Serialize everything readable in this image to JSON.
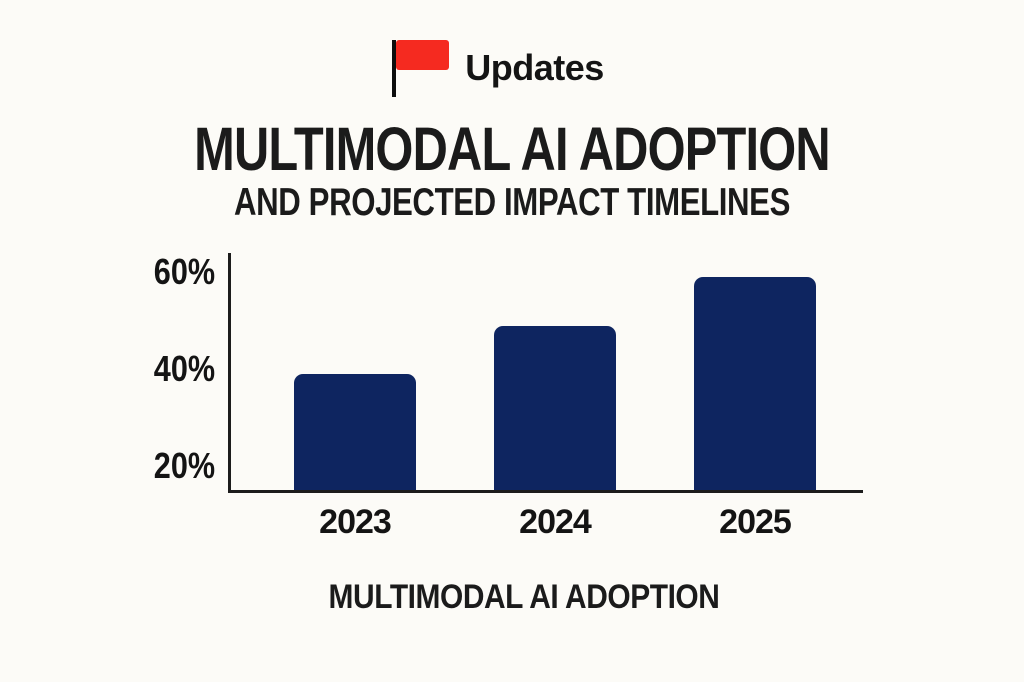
{
  "badge": {
    "label": "Updates",
    "flag_icon": "red-flag-icon"
  },
  "header": {
    "title": "MULTIMODAL AI ADOPTION",
    "subtitle": "AND PROJECTED IMPACT TIMELINES"
  },
  "colors": {
    "flag_red": "#f52a20",
    "bar_navy": "#0e2560",
    "axis_black": "#1c1c1c",
    "background": "#fcfbf7"
  },
  "chart_data": {
    "type": "bar",
    "categories": [
      "2023",
      "2024",
      "2025"
    ],
    "values": [
      39,
      49,
      59
    ],
    "series_name": "Multimodal AI adoption (%)",
    "title": "MULTIMODAL AI ADOPTION AND PROJECTED IMPACT TIMELINES",
    "xlabel": "MULTIMODAL AI ADOPTION",
    "ylabel": "",
    "y_ticks": [
      20,
      40,
      60
    ],
    "y_tick_labels": [
      "20%",
      "40%",
      "60%"
    ],
    "ylim": [
      15,
      64
    ],
    "grid": false,
    "legend": false,
    "bar_color": "#0e2560"
  }
}
